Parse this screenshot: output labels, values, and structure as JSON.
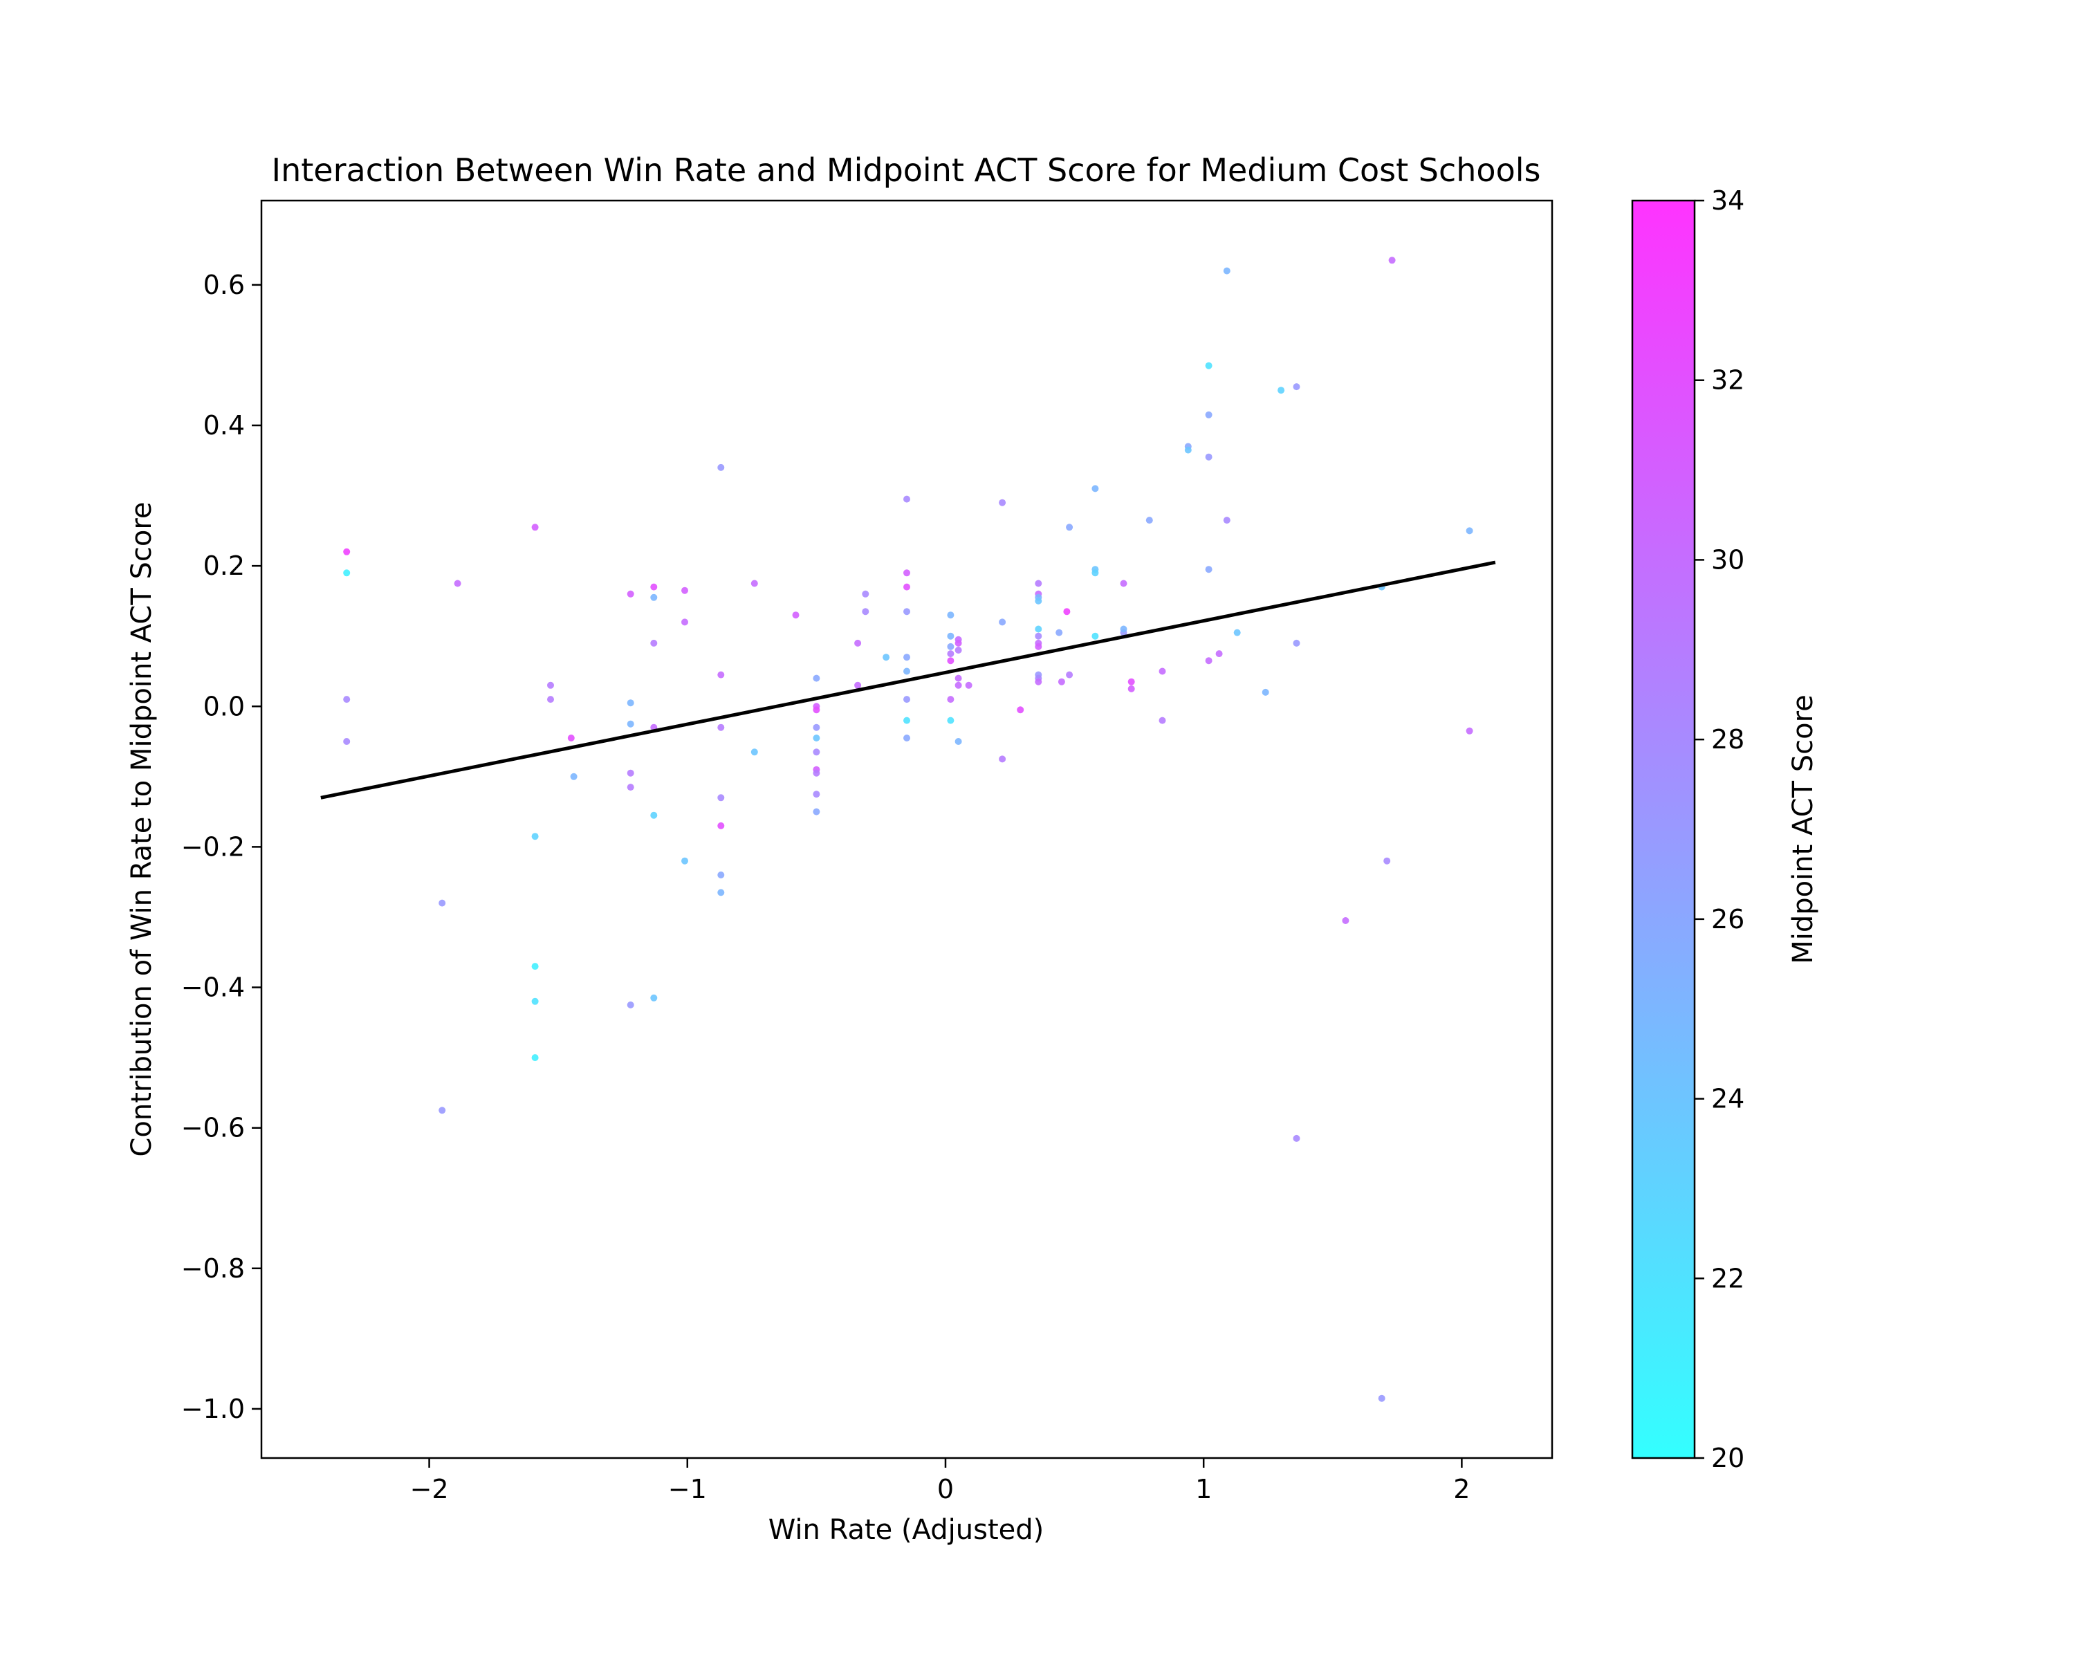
{
  "chart_data": {
    "type": "scatter",
    "title": "Interaction Between Win Rate and Midpoint ACT Score for Medium Cost Schools",
    "xlabel": "Win Rate (Adjusted)",
    "ylabel": "Contribution of Win Rate to Midpoint ACT Score",
    "xlim": [
      -2.65,
      2.35
    ],
    "ylim": [
      -1.07,
      0.72
    ],
    "x_ticks": [
      -2,
      -1,
      0,
      1,
      2
    ],
    "x_tick_labels": [
      "−2",
      "−1",
      "0",
      "1",
      "2"
    ],
    "y_ticks": [
      0.6,
      0.4,
      0.2,
      0.0,
      -0.2,
      -0.4,
      -0.6,
      -0.8,
      -1.0
    ],
    "y_tick_labels": [
      "0.6",
      "0.4",
      "0.2",
      "0.0",
      "−0.2",
      "−0.4",
      "−0.6",
      "−0.8",
      "−1.0"
    ],
    "grid": false,
    "colorbar": {
      "label": "Midpoint ACT Score",
      "range": [
        20,
        34
      ],
      "ticks": [
        20,
        22,
        24,
        26,
        28,
        30,
        32,
        34
      ],
      "tick_labels": [
        "20",
        "22",
        "24",
        "26",
        "28",
        "30",
        "32",
        "34"
      ],
      "colormap": "cool",
      "color_low": "#33ffff",
      "color_high": "#ff33ff"
    },
    "trend_line": {
      "x": [
        -2.42,
        2.13
      ],
      "y": [
        -0.13,
        0.205
      ],
      "color": "#000000"
    },
    "points": [
      {
        "x": -2.32,
        "y": 0.22,
        "c": 33
      },
      {
        "x": -2.32,
        "y": 0.19,
        "c": 21
      },
      {
        "x": -2.32,
        "y": 0.01,
        "c": 28
      },
      {
        "x": -2.32,
        "y": -0.05,
        "c": 28
      },
      {
        "x": -1.95,
        "y": -0.28,
        "c": 27
      },
      {
        "x": -1.95,
        "y": -0.575,
        "c": 27
      },
      {
        "x": -1.89,
        "y": 0.175,
        "c": 30
      },
      {
        "x": -1.59,
        "y": 0.255,
        "c": 31
      },
      {
        "x": -1.59,
        "y": -0.185,
        "c": 23
      },
      {
        "x": -1.59,
        "y": -0.37,
        "c": 21
      },
      {
        "x": -1.59,
        "y": -0.42,
        "c": 22
      },
      {
        "x": -1.59,
        "y": -0.5,
        "c": 21
      },
      {
        "x": -1.53,
        "y": 0.03,
        "c": 29
      },
      {
        "x": -1.53,
        "y": 0.01,
        "c": 29
      },
      {
        "x": -1.45,
        "y": -0.045,
        "c": 32
      },
      {
        "x": -1.44,
        "y": -0.1,
        "c": 25
      },
      {
        "x": -1.22,
        "y": 0.16,
        "c": 31
      },
      {
        "x": -1.22,
        "y": 0.005,
        "c": 25
      },
      {
        "x": -1.22,
        "y": -0.025,
        "c": 25
      },
      {
        "x": -1.22,
        "y": -0.095,
        "c": 29
      },
      {
        "x": -1.22,
        "y": -0.115,
        "c": 29
      },
      {
        "x": -1.22,
        "y": -0.425,
        "c": 27
      },
      {
        "x": -1.13,
        "y": 0.17,
        "c": 32
      },
      {
        "x": -1.13,
        "y": 0.155,
        "c": 25
      },
      {
        "x": -1.13,
        "y": 0.09,
        "c": 29
      },
      {
        "x": -1.13,
        "y": -0.03,
        "c": 30
      },
      {
        "x": -1.13,
        "y": -0.155,
        "c": 23
      },
      {
        "x": -1.13,
        "y": -0.415,
        "c": 24
      },
      {
        "x": -1.01,
        "y": 0.165,
        "c": 31
      },
      {
        "x": -1.01,
        "y": 0.12,
        "c": 30
      },
      {
        "x": -1.01,
        "y": -0.22,
        "c": 24
      },
      {
        "x": -0.87,
        "y": 0.34,
        "c": 27
      },
      {
        "x": -0.87,
        "y": 0.045,
        "c": 30
      },
      {
        "x": -0.87,
        "y": -0.03,
        "c": 29
      },
      {
        "x": -0.87,
        "y": -0.13,
        "c": 28
      },
      {
        "x": -0.87,
        "y": -0.17,
        "c": 32
      },
      {
        "x": -0.87,
        "y": -0.24,
        "c": 26
      },
      {
        "x": -0.87,
        "y": -0.265,
        "c": 25
      },
      {
        "x": -0.74,
        "y": 0.175,
        "c": 30
      },
      {
        "x": -0.74,
        "y": -0.065,
        "c": 24
      },
      {
        "x": -0.58,
        "y": 0.13,
        "c": 31
      },
      {
        "x": -0.5,
        "y": 0.04,
        "c": 26
      },
      {
        "x": -0.5,
        "y": 0.0,
        "c": 31
      },
      {
        "x": -0.5,
        "y": -0.005,
        "c": 32
      },
      {
        "x": -0.5,
        "y": -0.03,
        "c": 27
      },
      {
        "x": -0.5,
        "y": -0.045,
        "c": 24
      },
      {
        "x": -0.5,
        "y": -0.065,
        "c": 28
      },
      {
        "x": -0.5,
        "y": -0.09,
        "c": 31
      },
      {
        "x": -0.5,
        "y": -0.095,
        "c": 29
      },
      {
        "x": -0.5,
        "y": -0.125,
        "c": 28
      },
      {
        "x": -0.5,
        "y": -0.15,
        "c": 26
      },
      {
        "x": -0.34,
        "y": 0.09,
        "c": 30
      },
      {
        "x": -0.34,
        "y": 0.03,
        "c": 30
      },
      {
        "x": -0.31,
        "y": 0.16,
        "c": 28
      },
      {
        "x": -0.31,
        "y": 0.135,
        "c": 28
      },
      {
        "x": -0.23,
        "y": 0.07,
        "c": 24
      },
      {
        "x": -0.15,
        "y": 0.295,
        "c": 28
      },
      {
        "x": -0.15,
        "y": 0.19,
        "c": 31
      },
      {
        "x": -0.15,
        "y": 0.17,
        "c": 32
      },
      {
        "x": -0.15,
        "y": 0.135,
        "c": 27
      },
      {
        "x": -0.15,
        "y": 0.07,
        "c": 26
      },
      {
        "x": -0.15,
        "y": 0.05,
        "c": 25
      },
      {
        "x": -0.15,
        "y": 0.01,
        "c": 27
      },
      {
        "x": -0.15,
        "y": -0.02,
        "c": 22
      },
      {
        "x": -0.15,
        "y": -0.045,
        "c": 26
      },
      {
        "x": 0.02,
        "y": 0.13,
        "c": 25
      },
      {
        "x": 0.02,
        "y": 0.1,
        "c": 25
      },
      {
        "x": 0.02,
        "y": 0.085,
        "c": 26
      },
      {
        "x": 0.02,
        "y": 0.075,
        "c": 29
      },
      {
        "x": 0.02,
        "y": 0.065,
        "c": 32
      },
      {
        "x": 0.02,
        "y": 0.01,
        "c": 30
      },
      {
        "x": 0.02,
        "y": -0.02,
        "c": 22
      },
      {
        "x": 0.05,
        "y": 0.095,
        "c": 30
      },
      {
        "x": 0.05,
        "y": 0.09,
        "c": 31
      },
      {
        "x": 0.05,
        "y": 0.08,
        "c": 29
      },
      {
        "x": 0.05,
        "y": 0.04,
        "c": 30
      },
      {
        "x": 0.05,
        "y": 0.03,
        "c": 30
      },
      {
        "x": 0.05,
        "y": -0.05,
        "c": 25
      },
      {
        "x": 0.09,
        "y": 0.03,
        "c": 30
      },
      {
        "x": 0.22,
        "y": 0.29,
        "c": 28
      },
      {
        "x": 0.22,
        "y": 0.12,
        "c": 26
      },
      {
        "x": 0.22,
        "y": -0.075,
        "c": 29
      },
      {
        "x": 0.29,
        "y": -0.005,
        "c": 32
      },
      {
        "x": 0.36,
        "y": 0.175,
        "c": 29
      },
      {
        "x": 0.36,
        "y": 0.16,
        "c": 30
      },
      {
        "x": 0.36,
        "y": 0.155,
        "c": 25
      },
      {
        "x": 0.36,
        "y": 0.15,
        "c": 24
      },
      {
        "x": 0.36,
        "y": 0.11,
        "c": 23
      },
      {
        "x": 0.36,
        "y": 0.1,
        "c": 28
      },
      {
        "x": 0.36,
        "y": 0.09,
        "c": 30
      },
      {
        "x": 0.36,
        "y": 0.085,
        "c": 31
      },
      {
        "x": 0.36,
        "y": 0.045,
        "c": 27
      },
      {
        "x": 0.36,
        "y": 0.04,
        "c": 28
      },
      {
        "x": 0.36,
        "y": 0.035,
        "c": 30
      },
      {
        "x": 0.44,
        "y": 0.105,
        "c": 26
      },
      {
        "x": 0.45,
        "y": 0.035,
        "c": 30
      },
      {
        "x": 0.47,
        "y": 0.135,
        "c": 33
      },
      {
        "x": 0.48,
        "y": 0.255,
        "c": 26
      },
      {
        "x": 0.48,
        "y": 0.045,
        "c": 29
      },
      {
        "x": 0.58,
        "y": 0.31,
        "c": 25
      },
      {
        "x": 0.58,
        "y": 0.195,
        "c": 24
      },
      {
        "x": 0.58,
        "y": 0.19,
        "c": 23
      },
      {
        "x": 0.58,
        "y": 0.1,
        "c": 22
      },
      {
        "x": 0.69,
        "y": 0.175,
        "c": 30
      },
      {
        "x": 0.69,
        "y": 0.105,
        "c": 27
      },
      {
        "x": 0.69,
        "y": 0.11,
        "c": 25
      },
      {
        "x": 0.72,
        "y": 0.035,
        "c": 32
      },
      {
        "x": 0.72,
        "y": 0.025,
        "c": 31
      },
      {
        "x": 0.79,
        "y": 0.265,
        "c": 26
      },
      {
        "x": 0.84,
        "y": 0.05,
        "c": 30
      },
      {
        "x": 0.84,
        "y": -0.02,
        "c": 29
      },
      {
        "x": 0.94,
        "y": 0.37,
        "c": 26
      },
      {
        "x": 0.94,
        "y": 0.365,
        "c": 24
      },
      {
        "x": 1.02,
        "y": 0.485,
        "c": 22
      },
      {
        "x": 1.02,
        "y": 0.415,
        "c": 26
      },
      {
        "x": 1.02,
        "y": 0.355,
        "c": 27
      },
      {
        "x": 1.02,
        "y": 0.195,
        "c": 26
      },
      {
        "x": 1.02,
        "y": 0.065,
        "c": 30
      },
      {
        "x": 1.06,
        "y": 0.075,
        "c": 30
      },
      {
        "x": 1.09,
        "y": 0.62,
        "c": 25
      },
      {
        "x": 1.09,
        "y": 0.265,
        "c": 28
      },
      {
        "x": 1.13,
        "y": 0.105,
        "c": 24
      },
      {
        "x": 1.24,
        "y": 0.02,
        "c": 25
      },
      {
        "x": 1.3,
        "y": 0.45,
        "c": 23
      },
      {
        "x": 1.36,
        "y": 0.455,
        "c": 27
      },
      {
        "x": 1.36,
        "y": 0.09,
        "c": 27
      },
      {
        "x": 1.36,
        "y": -0.615,
        "c": 28
      },
      {
        "x": 1.55,
        "y": -0.305,
        "c": 30
      },
      {
        "x": 1.69,
        "y": 0.17,
        "c": 24
      },
      {
        "x": 1.69,
        "y": -0.985,
        "c": 27
      },
      {
        "x": 1.71,
        "y": -0.22,
        "c": 28
      },
      {
        "x": 1.73,
        "y": 0.635,
        "c": 30
      },
      {
        "x": 2.03,
        "y": 0.25,
        "c": 25
      },
      {
        "x": 2.03,
        "y": -0.035,
        "c": 30
      }
    ]
  }
}
